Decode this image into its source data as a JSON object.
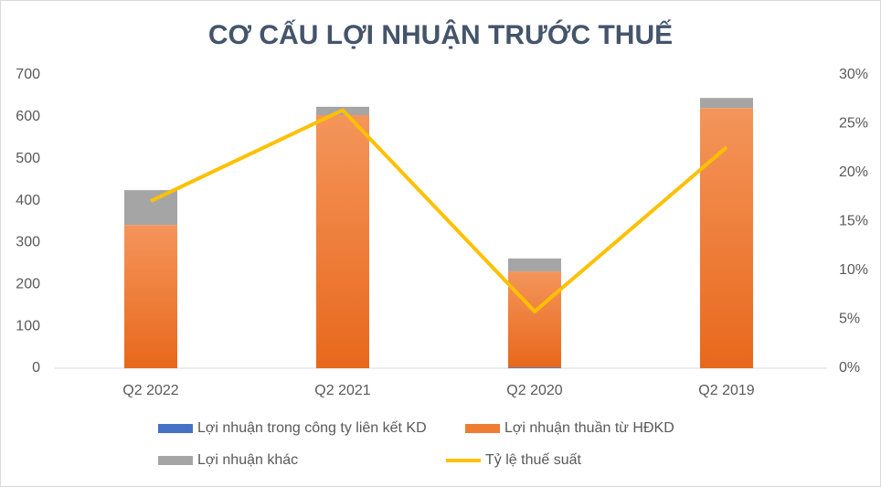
{
  "chart_data": {
    "type": "bar",
    "title": "CƠ CẤU LỢI NHUẬN TRƯỚC THUẾ",
    "categories": [
      "Q2 2022",
      "Q2 2021",
      "Q2 2020",
      "Q2 2019"
    ],
    "stacked": true,
    "series": [
      {
        "name": "Lợi nhuận trong công ty liên kết KD",
        "type": "bar",
        "color": "#4472c4",
        "values": [
          0,
          0,
          2,
          0
        ]
      },
      {
        "name": "Lợi nhuận thuần từ HĐKD",
        "type": "bar",
        "color": "#ef7d31",
        "values": [
          342,
          604,
          229,
          621
        ]
      },
      {
        "name": "Lợi nhuận khác",
        "type": "bar",
        "color": "#a5a5a5",
        "values": [
          83,
          20,
          31,
          24
        ]
      },
      {
        "name": "Tỷ lệ thuế suất",
        "type": "line",
        "axis": "y2",
        "color": "#ffc000",
        "values": [
          17.1,
          26.4,
          5.8,
          22.6
        ]
      }
    ],
    "ylim": [
      0,
      700
    ],
    "yticks": [
      0,
      100,
      200,
      300,
      400,
      500,
      600,
      700
    ],
    "y2lim": [
      0,
      30
    ],
    "y2ticks": [
      {
        "value": 0,
        "label": "0%"
      },
      {
        "value": 5,
        "label": "5%"
      },
      {
        "value": 10,
        "label": "10%"
      },
      {
        "value": 15,
        "label": "15%"
      },
      {
        "value": 20,
        "label": "20%"
      },
      {
        "value": 25,
        "label": "25%"
      },
      {
        "value": 30,
        "label": "30%"
      }
    ],
    "grid": false
  }
}
